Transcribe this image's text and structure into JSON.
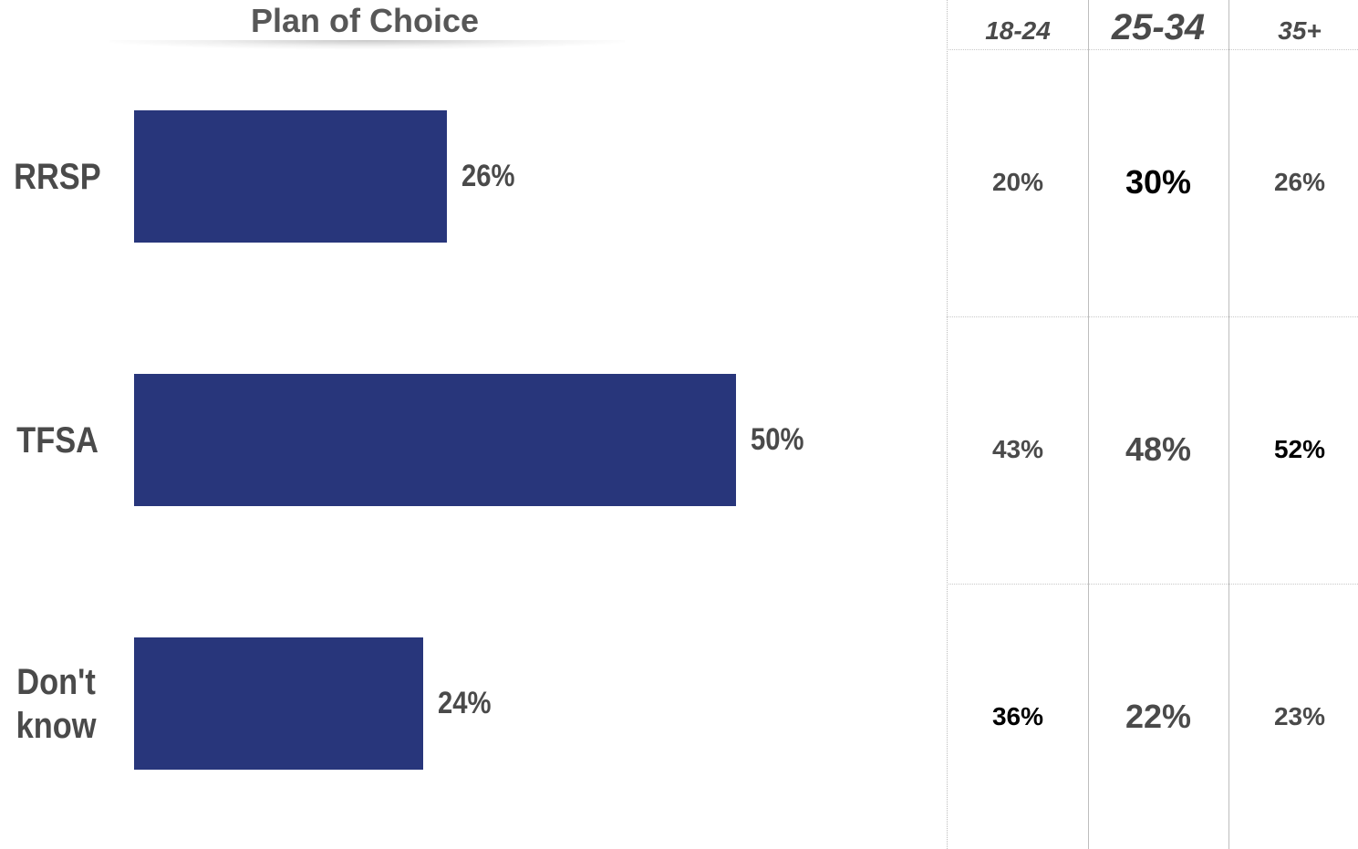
{
  "chart_data": {
    "type": "bar",
    "orientation": "horizontal",
    "title": "Plan of Choice",
    "categories": [
      "RRSP",
      "TFSA",
      "Don't know"
    ],
    "values": [
      26,
      50,
      24
    ],
    "value_labels": [
      "26%",
      "50%",
      "24%"
    ],
    "bar_color": "#28367b",
    "xlim": [
      0,
      100
    ]
  },
  "age_table": {
    "columns": [
      "18-24",
      "25-34",
      "35+"
    ],
    "rows": [
      {
        "category": "RRSP",
        "values": [
          "20%",
          "30%",
          "26%"
        ]
      },
      {
        "category": "TFSA",
        "values": [
          "43%",
          "48%",
          "52%"
        ]
      },
      {
        "category": "Don't know",
        "values": [
          "36%",
          "22%",
          "23%"
        ]
      }
    ],
    "text_color_default": "#4a4a4a",
    "text_color_emphasis": "#000000",
    "emphasis": [
      [
        false,
        true,
        false
      ],
      [
        false,
        false,
        true
      ],
      [
        true,
        false,
        false
      ]
    ]
  }
}
